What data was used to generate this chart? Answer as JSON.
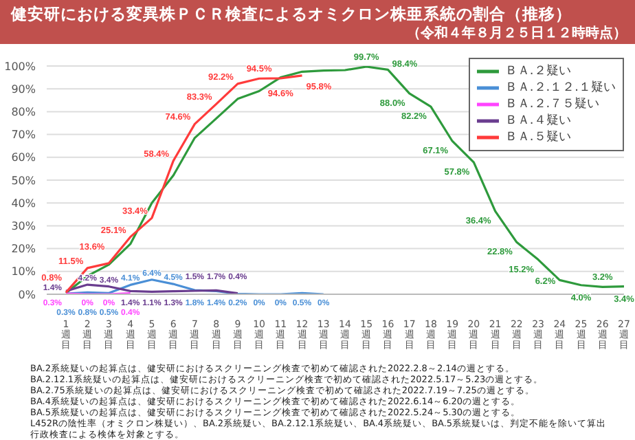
{
  "chart_data": {
    "type": "line",
    "title": "健安研における変異株ＰＣＲ検査によるオミクロン株亜系統の割合（推移）",
    "subtitle": "（令和４年８月２５日１２時時点）",
    "categories": [
      "1週目",
      "2週目",
      "3週目",
      "4週目",
      "5週目",
      "6週目",
      "7週目",
      "8週目",
      "9週目",
      "10週目",
      "11週目",
      "12週目",
      "13週目",
      "14週目",
      "15週目",
      "16週目",
      "17週目",
      "18週目",
      "19週目",
      "20週目",
      "21週目",
      "22週目",
      "23週目",
      "24週目",
      "25週目",
      "26週目",
      "27週目"
    ],
    "series": [
      {
        "name": "ＢＡ.２疑い",
        "color": "#2e9a3c",
        "values": [
          0.5,
          8,
          13,
          22,
          40,
          52,
          68.5,
          77,
          85.6,
          89,
          95,
          97.5,
          98,
          98.2,
          99.7,
          98.4,
          88.0,
          82.2,
          67.1,
          57.8,
          36.4,
          22.8,
          15.2,
          6.2,
          4.0,
          3.2,
          3.4
        ],
        "value_labels": [
          null,
          null,
          null,
          null,
          null,
          null,
          null,
          null,
          null,
          null,
          null,
          null,
          null,
          null,
          "99.7%",
          "98.4%",
          "88.0%",
          "82.2%",
          "67.1%",
          "57.8%",
          "36.4%",
          "22.8%",
          "15.2%",
          "6.2%",
          "4.0%",
          "3.2%",
          "3.4%"
        ]
      },
      {
        "name": "ＢＡ.２.１２.１疑い",
        "color": "#4a8fd6",
        "values": [
          0.3,
          0.8,
          0.5,
          4.1,
          6.4,
          4.5,
          1.8,
          1.4,
          0.2,
          0,
          0,
          0.5,
          0,
          null,
          null,
          null,
          null,
          null,
          null,
          null,
          null,
          null,
          null,
          null,
          null,
          null,
          null
        ],
        "value_labels": [
          "0.3%",
          "0.8%",
          "0.5%",
          "4.1%",
          "6.4%",
          "4.5%",
          "1.8%",
          "1.4%",
          "0.2%",
          "0%",
          "0%",
          "0.5%",
          "0%",
          null,
          null,
          null,
          null,
          null,
          null,
          null,
          null,
          null,
          null,
          null,
          null,
          null,
          null
        ]
      },
      {
        "name": "ＢＡ.２.７５疑い",
        "color": "#ff44ff",
        "values": [
          0.3,
          0,
          0,
          0.4,
          null,
          null,
          null,
          null,
          null,
          null,
          null,
          null,
          null,
          null,
          null,
          null,
          null,
          null,
          null,
          null,
          null,
          null,
          null,
          null,
          null,
          null,
          null
        ],
        "value_labels": [
          "0.3%",
          "0%",
          "0%",
          "0.4%",
          null,
          null,
          null,
          null,
          null,
          null,
          null,
          null,
          null,
          null,
          null,
          null,
          null,
          null,
          null,
          null,
          null,
          null,
          null,
          null,
          null,
          null,
          null
        ]
      },
      {
        "name": "ＢＡ.４疑い",
        "color": "#6a3d8f",
        "values": [
          1.4,
          4.2,
          3.4,
          1.4,
          1.1,
          1.3,
          1.5,
          1.7,
          0.4,
          null,
          null,
          null,
          null,
          null,
          null,
          null,
          null,
          null,
          null,
          null,
          null,
          null,
          null,
          null,
          null,
          null,
          null
        ],
        "value_labels": [
          "1.4%",
          "4.2%",
          "3.4%",
          "1.4%",
          "1.1%",
          "1.3%",
          "1.5%",
          "1.7%",
          "0.4%",
          null,
          null,
          null,
          null,
          null,
          null,
          null,
          null,
          null,
          null,
          null,
          null,
          null,
          null,
          null,
          null,
          null,
          null
        ]
      },
      {
        "name": "ＢＡ.５疑い",
        "color": "#ff3b3b",
        "values": [
          0.8,
          11.5,
          13.6,
          25.1,
          33.4,
          58.4,
          74.6,
          83.3,
          92.2,
          94.5,
          94.6,
          95.8,
          null,
          null,
          null,
          null,
          null,
          null,
          null,
          null,
          null,
          null,
          null,
          null,
          null,
          null,
          null
        ],
        "value_labels": [
          "0.8%",
          "11.5%",
          "13.6%",
          "25.1%",
          "33.4%",
          "58.4%",
          "74.6%",
          "83.3%",
          "92.2%",
          "94.5%",
          "94.6%",
          "95.8%",
          null,
          null,
          null,
          null,
          null,
          null,
          null,
          null,
          null,
          null,
          null,
          null,
          null,
          null,
          null
        ]
      }
    ],
    "ylim": [
      0,
      100
    ],
    "yticks": [
      {
        "value": 0,
        "label": "0%"
      },
      {
        "value": 10,
        "label": "10%"
      },
      {
        "value": 20,
        "label": "20%"
      },
      {
        "value": 30,
        "label": "30%"
      },
      {
        "value": 40,
        "label": "40%"
      },
      {
        "value": 50,
        "label": "50%"
      },
      {
        "value": 60,
        "label": "60%"
      },
      {
        "value": 70,
        "label": "70%"
      },
      {
        "value": 80,
        "label": "80%"
      },
      {
        "value": 90,
        "label": "90%"
      },
      {
        "value": 100,
        "label": "100%"
      }
    ],
    "grid": "y",
    "legend": "top right",
    "marker": "none",
    "line_style": "solid",
    "annotations": [
      "BA.2系統疑いの起算点は、健安研におけるスクリーニング検査で初めて確認された2022.2.8～2.14の週とする。",
      "BA.2.12.1系統疑いの起算点は、健安研におけるスクリーニング検査で初めて確認された2022.5.17～5.23の週とする。",
      "BA.2.75系統疑いの起算点は、健安研におけるスクリーニング検査で初めて確認された2022.7.19～7.25の週とする。",
      "BA.4系統疑いの起算点は、健安研におけるスクリーニング検査で初めて確認された2022.6.14～6.20の週とする。",
      "BA.5系統疑いの起算点は、健安研におけるスクリーニング検査で初めて確認された2022.5.24～5.30の週とする。",
      "L452Rの陰性率（オミクロン株疑い）、BA.2系統疑い、BA.2.12.1系統疑い、BA.4系統疑い、BA.5系統疑いは、判定不能を除いて算出",
      "行政検査による検体を対象とする。"
    ]
  }
}
